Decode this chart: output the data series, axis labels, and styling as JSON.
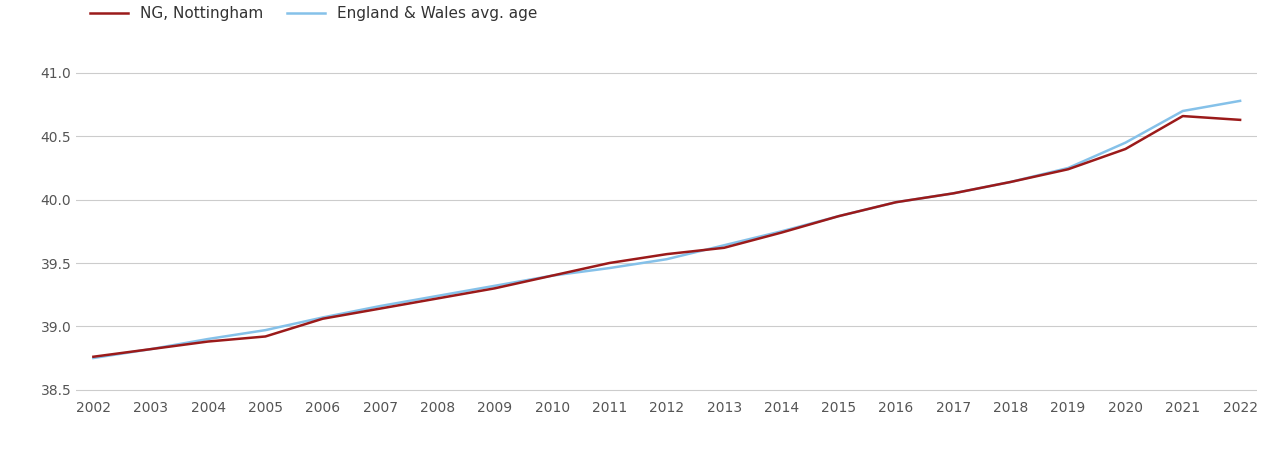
{
  "years": [
    2002,
    2003,
    2004,
    2005,
    2006,
    2007,
    2008,
    2009,
    2010,
    2011,
    2012,
    2013,
    2014,
    2015,
    2016,
    2017,
    2018,
    2019,
    2020,
    2021,
    2022
  ],
  "ng_nottingham": [
    38.76,
    38.82,
    38.88,
    38.92,
    39.06,
    39.14,
    39.22,
    39.3,
    39.4,
    39.5,
    39.57,
    39.62,
    39.74,
    39.87,
    39.98,
    40.05,
    40.14,
    40.24,
    40.4,
    40.66,
    40.63
  ],
  "england_wales": [
    38.75,
    38.82,
    38.9,
    38.97,
    39.07,
    39.16,
    39.24,
    39.32,
    39.4,
    39.46,
    39.53,
    39.64,
    39.75,
    39.87,
    39.98,
    40.05,
    40.14,
    40.25,
    40.45,
    40.7,
    40.78
  ],
  "ng_color": "#9b1a1a",
  "ew_color": "#85c1e9",
  "legend_ng": "NG, Nottingham",
  "legend_ew": "England & Wales avg. age",
  "ylim_min": 38.45,
  "ylim_max": 41.15,
  "yticks": [
    38.5,
    39.0,
    39.5,
    40.0,
    40.5,
    41.0
  ],
  "background_color": "#ffffff",
  "grid_color": "#cccccc",
  "line_width": 1.8,
  "legend_fontsize": 11,
  "tick_fontsize": 10
}
